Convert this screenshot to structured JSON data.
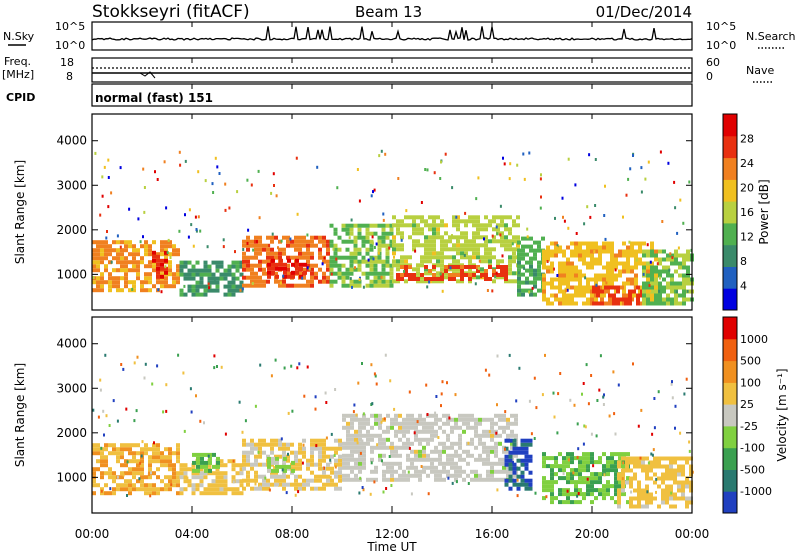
{
  "header": {
    "station": "Stokkseyri (fitACF)",
    "beam": "Beam 13",
    "date": "01/Dec/2014"
  },
  "top_panel": {
    "nsky_label": "N.Sky",
    "nsky_ticks": [
      "10^5",
      "10^0"
    ],
    "nsearch_label": "N.Search",
    "nsearch_ticks": [
      "10^5",
      "10^0"
    ],
    "freq_label": "Freq.",
    "freq_unit": "[MHz]",
    "freq_ticks": [
      "18",
      "8"
    ],
    "nave_label": "Nave",
    "nave_ticks": [
      "60",
      "0"
    ],
    "cpid_label": "CPID",
    "cpid_value": "normal (fast) 151"
  },
  "time_axis": {
    "ticks": [
      "00:00",
      "04:00",
      "08:00",
      "12:00",
      "16:00",
      "20:00",
      "00:00"
    ],
    "label": "Time UT"
  },
  "colors": {
    "power_scale": [
      "#0000e0",
      "#2060c0",
      "#3a8a6a",
      "#50b050",
      "#b8d040",
      "#f0c020",
      "#f08020",
      "#e83010",
      "#e00000"
    ],
    "velocity_scale": [
      "#2040c0",
      "#2a7a70",
      "#3aa050",
      "#80d040",
      "#c8c8c0",
      "#f0c040",
      "#f09020",
      "#f06010",
      "#e00000"
    ]
  },
  "chart_data": [
    {
      "type": "heatmap",
      "panel": "power",
      "ylabel": "Slant Range [km]",
      "y_ticks": [
        "1000",
        "2000",
        "3000",
        "4000"
      ],
      "ylim": [
        200,
        4600
      ],
      "x_range_hours": [
        0,
        24
      ],
      "colorbar": {
        "label": "Power [dB]",
        "ticks": [
          "4",
          "8",
          "12",
          "16",
          "20",
          "24",
          "28"
        ],
        "range": [
          0,
          32
        ]
      },
      "echo_regions": [
        {
          "t0": 0.0,
          "t1": 3.5,
          "r0": 600,
          "r1": 1700,
          "value": 22
        },
        {
          "t0": 2.4,
          "t1": 3.0,
          "r0": 900,
          "r1": 1500,
          "value": 28
        },
        {
          "t0": 3.5,
          "t1": 6.0,
          "r0": 500,
          "r1": 1300,
          "value": 10
        },
        {
          "t0": 6.0,
          "t1": 9.5,
          "r0": 700,
          "r1": 1800,
          "value": 24
        },
        {
          "t0": 7.0,
          "t1": 8.5,
          "r0": 900,
          "r1": 1300,
          "value": 28
        },
        {
          "t0": 9.5,
          "t1": 12.0,
          "r0": 700,
          "r1": 2100,
          "value": 14
        },
        {
          "t0": 12.0,
          "t1": 17.0,
          "r0": 800,
          "r1": 2300,
          "value": 16
        },
        {
          "t0": 12.0,
          "t1": 16.5,
          "r0": 850,
          "r1": 1150,
          "value": 26
        },
        {
          "t0": 17.0,
          "t1": 18.0,
          "r0": 500,
          "r1": 1800,
          "value": 12
        },
        {
          "t0": 18.0,
          "t1": 22.5,
          "r0": 300,
          "r1": 1700,
          "value": 20
        },
        {
          "t0": 20.0,
          "t1": 22.0,
          "r0": 300,
          "r1": 700,
          "value": 26
        },
        {
          "t0": 22.0,
          "t1": 24.0,
          "r0": 300,
          "r1": 1500,
          "value": 14
        }
      ]
    },
    {
      "type": "heatmap",
      "panel": "velocity",
      "ylabel": "Slant Range [km]",
      "y_ticks": [
        "1000",
        "2000",
        "3000",
        "4000"
      ],
      "ylim": [
        200,
        4600
      ],
      "x_range_hours": [
        0,
        24
      ],
      "colorbar": {
        "label": "Velocity [m s⁻¹]",
        "ticks": [
          "1000",
          "500",
          "100",
          "25",
          "-25",
          "-100",
          "-500",
          "-1000"
        ],
        "range": [
          -1000,
          1000
        ]
      },
      "echo_regions": [
        {
          "t0": 0.0,
          "t1": 3.5,
          "r0": 600,
          "r1": 1700,
          "value": 300
        },
        {
          "t0": 3.5,
          "t1": 6.0,
          "r0": 600,
          "r1": 1400,
          "value": 200
        },
        {
          "t0": 4.0,
          "t1": 5.0,
          "r0": 1100,
          "r1": 1500,
          "value": -300
        },
        {
          "t0": 6.0,
          "t1": 10.0,
          "r0": 700,
          "r1": 1800,
          "value": 150
        },
        {
          "t0": 7.0,
          "t1": 8.0,
          "r0": 1100,
          "r1": 1400,
          "value": -200
        },
        {
          "t0": 10.0,
          "t1": 17.0,
          "r0": 900,
          "r1": 2400,
          "value": 0
        },
        {
          "t0": 16.5,
          "t1": 17.5,
          "r0": 700,
          "r1": 1800,
          "value": -800
        },
        {
          "t0": 18.0,
          "t1": 21.5,
          "r0": 400,
          "r1": 1500,
          "value": -300
        },
        {
          "t0": 21.0,
          "t1": 24.0,
          "r0": 300,
          "r1": 1400,
          "value": 200
        }
      ]
    }
  ]
}
